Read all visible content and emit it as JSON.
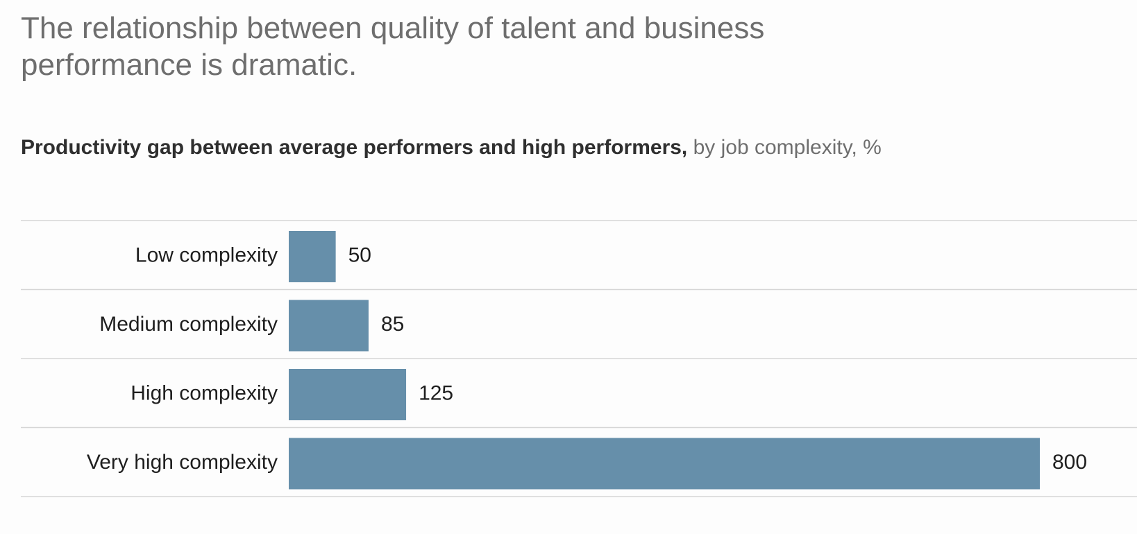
{
  "headline": "The relationship between quality of talent and business performance is dramatic.",
  "subtitle": {
    "main": "Productivity gap between average performers and high performers,",
    "qualifier": "by job complexity, %"
  },
  "colors": {
    "bar": "#668faa",
    "gridline": "#d6d6d6",
    "label": "#1e1e1e"
  },
  "chart_data": {
    "type": "bar",
    "orientation": "horizontal",
    "title": "Productivity gap between average performers and high performers, by job complexity, %",
    "categories": [
      "Low complexity",
      "Medium complexity",
      "High complexity",
      "Very high complexity"
    ],
    "values": [
      50,
      85,
      125,
      800
    ],
    "value_labels": [
      "50",
      "85",
      "125",
      "800"
    ],
    "xlim": [
      0,
      800
    ],
    "grid": false,
    "legend": "none"
  }
}
